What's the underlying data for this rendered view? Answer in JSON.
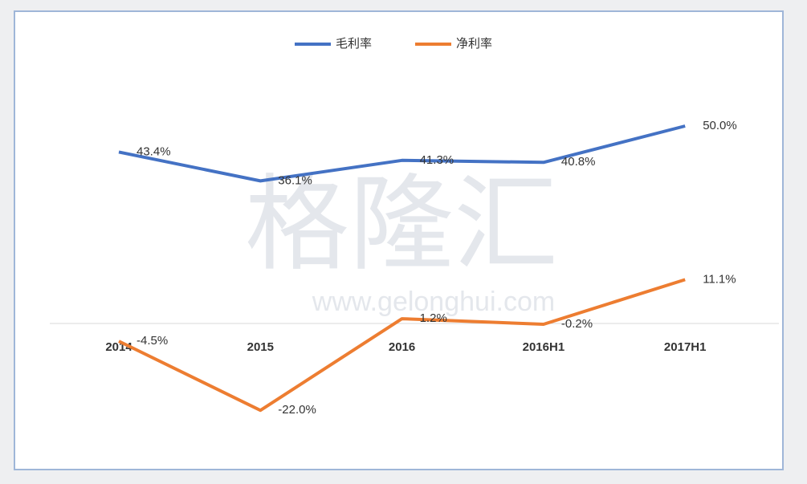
{
  "chart_data": {
    "type": "line",
    "categories": [
      "2014",
      "2015",
      "2016",
      "2016H1",
      "2017H1"
    ],
    "series": [
      {
        "name": "毛利率",
        "color": "#4472c4",
        "values": [
          43.4,
          36.1,
          41.3,
          40.8,
          50.0
        ],
        "value_labels": [
          "43.4%",
          "36.1%",
          "41.3%",
          "40.8%",
          "50.0%"
        ]
      },
      {
        "name": "净利率",
        "color": "#ed7d31",
        "values": [
          -4.5,
          -22.0,
          1.2,
          -0.2,
          11.1
        ],
        "value_labels": [
          "-4.5%",
          "-22.0%",
          "1.2%",
          "-0.2%",
          "11.1%"
        ]
      }
    ],
    "legend": "top",
    "watermark": "格隆汇",
    "watermark_url": "www.gelonghui.com"
  }
}
